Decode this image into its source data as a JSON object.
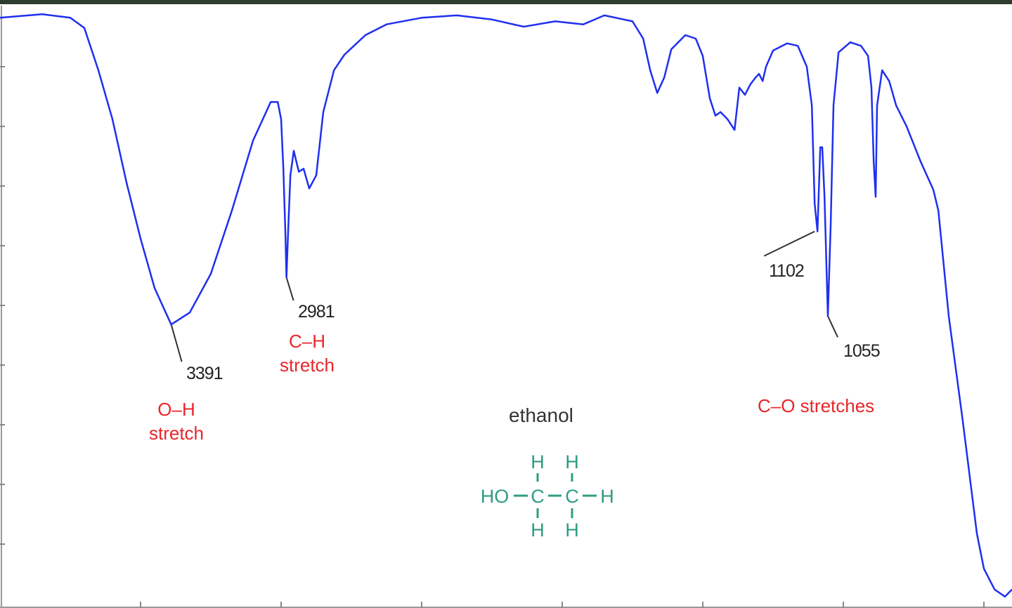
{
  "chart_data": {
    "type": "line",
    "title": "ethanol",
    "xlabel": "",
    "ylabel": "",
    "xlim": [
      4000,
      400
    ],
    "ylim": [
      0,
      100
    ],
    "x_reversed": true,
    "grid": false,
    "x_ticks": [
      3500,
      3000,
      2500,
      2000,
      1500,
      1000,
      500
    ],
    "y_ticks": [
      10,
      20,
      30,
      40,
      50,
      60,
      70,
      80,
      90
    ],
    "line_color": "#1f2ff0",
    "series": [
      {
        "points": [
          [
            4000,
            98.2
          ],
          [
            3850,
            98.8
          ],
          [
            3750,
            98.2
          ],
          [
            3700,
            96.5
          ],
          [
            3650,
            89.4
          ],
          [
            3600,
            81.2
          ],
          [
            3550,
            70.6
          ],
          [
            3500,
            61.2
          ],
          [
            3450,
            52.9
          ],
          [
            3391,
            46.8
          ],
          [
            3325,
            48.8
          ],
          [
            3250,
            55.3
          ],
          [
            3175,
            65.9
          ],
          [
            3100,
            77.6
          ],
          [
            3037,
            84.1
          ],
          [
            3012,
            84.1
          ],
          [
            3000,
            81.2
          ],
          [
            2992,
            72.9
          ],
          [
            2985,
            62.4
          ],
          [
            2981,
            54.7
          ],
          [
            2975,
            62.4
          ],
          [
            2967,
            71.8
          ],
          [
            2955,
            75.9
          ],
          [
            2937,
            72.4
          ],
          [
            2920,
            72.9
          ],
          [
            2900,
            69.6
          ],
          [
            2875,
            71.8
          ],
          [
            2850,
            82.4
          ],
          [
            2812,
            89.4
          ],
          [
            2775,
            92.0
          ],
          [
            2700,
            95.3
          ],
          [
            2625,
            97.1
          ],
          [
            2500,
            98.2
          ],
          [
            2375,
            98.6
          ],
          [
            2250,
            97.9
          ],
          [
            2137,
            96.7
          ],
          [
            2025,
            97.6
          ],
          [
            1925,
            97.1
          ],
          [
            1850,
            98.6
          ],
          [
            1750,
            97.6
          ],
          [
            1712,
            94.7
          ],
          [
            1687,
            89.4
          ],
          [
            1662,
            85.6
          ],
          [
            1637,
            88.2
          ],
          [
            1612,
            92.9
          ],
          [
            1562,
            95.3
          ],
          [
            1525,
            94.7
          ],
          [
            1500,
            91.8
          ],
          [
            1475,
            84.7
          ],
          [
            1455,
            81.8
          ],
          [
            1437,
            82.4
          ],
          [
            1412,
            81.2
          ],
          [
            1387,
            79.4
          ],
          [
            1370,
            86.5
          ],
          [
            1350,
            85.3
          ],
          [
            1330,
            87.1
          ],
          [
            1312,
            88.2
          ],
          [
            1300,
            88.8
          ],
          [
            1287,
            87.6
          ],
          [
            1275,
            90.0
          ],
          [
            1250,
            92.7
          ],
          [
            1200,
            93.9
          ],
          [
            1162,
            93.5
          ],
          [
            1130,
            90.0
          ],
          [
            1112,
            83.5
          ],
          [
            1102,
            67.1
          ],
          [
            1092,
            62.4
          ],
          [
            1082,
            76.5
          ],
          [
            1075,
            76.5
          ],
          [
            1067,
            68.2
          ],
          [
            1055,
            48.2
          ],
          [
            1045,
            63.5
          ],
          [
            1035,
            83.5
          ],
          [
            1017,
            92.4
          ],
          [
            975,
            94.1
          ],
          [
            937,
            93.5
          ],
          [
            912,
            91.8
          ],
          [
            900,
            86.5
          ],
          [
            892,
            74.1
          ],
          [
            885,
            68.2
          ],
          [
            880,
            83.5
          ],
          [
            862,
            89.4
          ],
          [
            837,
            87.6
          ],
          [
            812,
            83.5
          ],
          [
            775,
            80.0
          ],
          [
            725,
            74.1
          ],
          [
            680,
            69.4
          ],
          [
            662,
            65.9
          ],
          [
            625,
            48.2
          ],
          [
            575,
            30.6
          ],
          [
            525,
            11.8
          ],
          [
            500,
            5.9
          ],
          [
            462,
            2.4
          ],
          [
            425,
            1.2
          ],
          [
            400,
            2.4
          ]
        ]
      }
    ],
    "peak_labels": [
      {
        "x": 3391,
        "y": 46.8,
        "text": "3391"
      },
      {
        "x": 2981,
        "y": 54.7,
        "text": "2981"
      },
      {
        "x": 1102,
        "y": 62.4,
        "text": "1102"
      },
      {
        "x": 1055,
        "y": 48.2,
        "text": "1055"
      }
    ],
    "annotations": {
      "oh": [
        "O–H",
        "stretch"
      ],
      "ch": [
        "C–H",
        "stretch"
      ],
      "co": "C–O stretches"
    },
    "annotation_color": "#e8262a",
    "molecule": {
      "name": "ethanol",
      "color": "#2e9c80",
      "formula_left": "HO",
      "atoms": [
        "C",
        "C",
        "H"
      ],
      "hydrogen": "H"
    }
  }
}
